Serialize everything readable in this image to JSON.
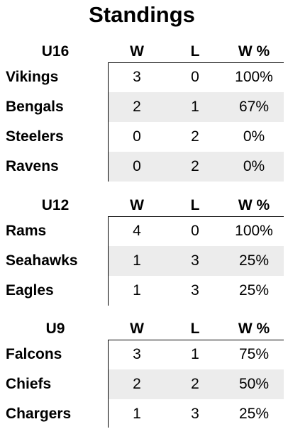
{
  "title": "Standings",
  "columns": {
    "w": "W",
    "l": "L",
    "pct": "W %"
  },
  "divisions": [
    {
      "name": "U16",
      "teams": [
        {
          "name": "Vikings",
          "w": "3",
          "l": "0",
          "pct": "100%"
        },
        {
          "name": "Bengals",
          "w": "2",
          "l": "1",
          "pct": "67%"
        },
        {
          "name": "Steelers",
          "w": "0",
          "l": "2",
          "pct": "0%"
        },
        {
          "name": "Ravens",
          "w": "0",
          "l": "2",
          "pct": "0%"
        }
      ]
    },
    {
      "name": "U12",
      "teams": [
        {
          "name": "Rams",
          "w": "4",
          "l": "0",
          "pct": "100%"
        },
        {
          "name": "Seahawks",
          "w": "1",
          "l": "3",
          "pct": "25%"
        },
        {
          "name": "Eagles",
          "w": "1",
          "l": "3",
          "pct": "25%"
        }
      ]
    },
    {
      "name": "U9",
      "teams": [
        {
          "name": "Falcons",
          "w": "3",
          "l": "1",
          "pct": "75%"
        },
        {
          "name": "Chiefs",
          "w": "2",
          "l": "2",
          "pct": "50%"
        },
        {
          "name": "Chargers",
          "w": "1",
          "l": "3",
          "pct": "25%"
        }
      ]
    }
  ]
}
